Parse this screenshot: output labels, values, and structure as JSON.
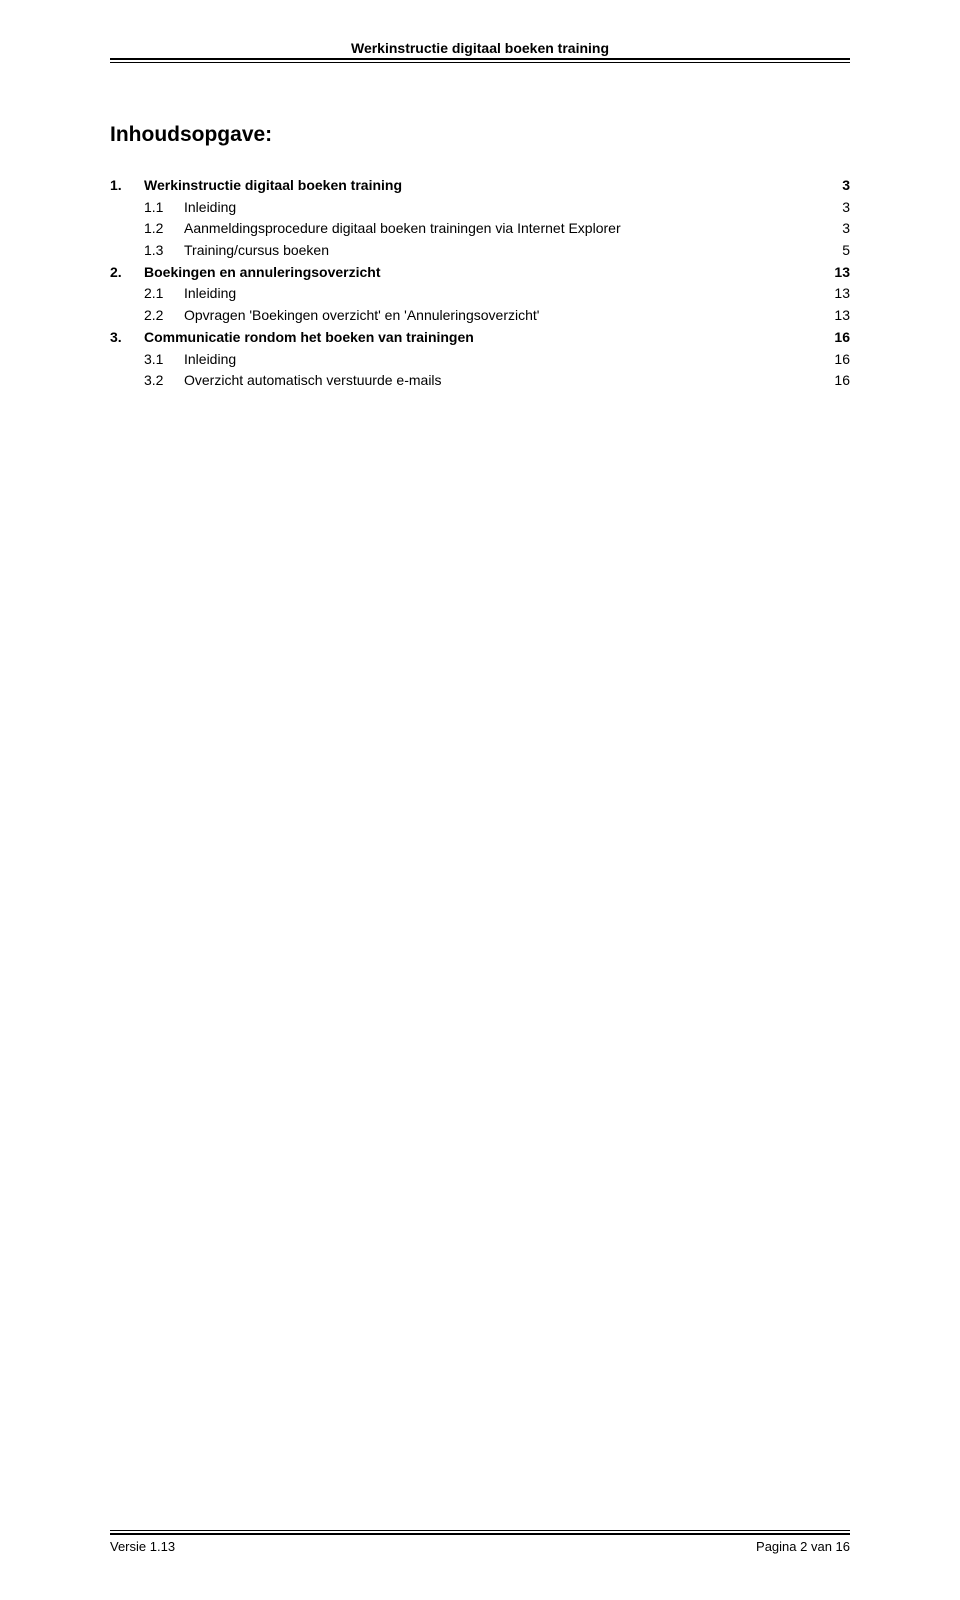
{
  "header": {
    "title": "Werkinstructie digitaal boeken training"
  },
  "document": {
    "title": "Inhoudsopgave:"
  },
  "toc": [
    {
      "level": 1,
      "num": "1.",
      "text": "Werkinstructie digitaal boeken training",
      "page": "3"
    },
    {
      "level": 2,
      "num": "1.1",
      "text": "Inleiding",
      "page": "3"
    },
    {
      "level": 2,
      "num": "1.2",
      "text": "Aanmeldingsprocedure digitaal boeken trainingen via Internet Explorer",
      "page": "3"
    },
    {
      "level": 2,
      "num": "1.3",
      "text": "Training/cursus boeken",
      "page": "5"
    },
    {
      "level": 1,
      "num": "2.",
      "text": "Boekingen en annuleringsoverzicht",
      "page": "13"
    },
    {
      "level": 2,
      "num": "2.1",
      "text": "Inleiding",
      "page": "13"
    },
    {
      "level": 2,
      "num": "2.2",
      "text": "Opvragen 'Boekingen overzicht' en 'Annuleringsoverzicht'",
      "page": "13"
    },
    {
      "level": 1,
      "num": "3.",
      "text": "Communicatie rondom het boeken van trainingen",
      "page": "16"
    },
    {
      "level": 2,
      "num": "3.1",
      "text": "Inleiding",
      "page": "16"
    },
    {
      "level": 2,
      "num": "3.2",
      "text": "Overzicht automatisch verstuurde e-mails",
      "page": "16"
    }
  ],
  "footer": {
    "left": "Versie 1.13",
    "right": "Pagina 2 van 16"
  }
}
